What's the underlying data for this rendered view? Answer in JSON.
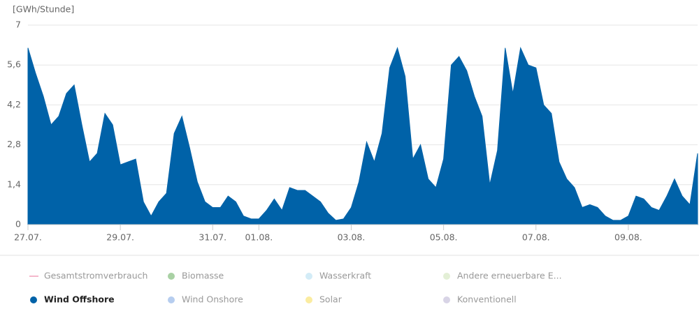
{
  "chart_data": {
    "type": "area",
    "y_label": "[GWh/Stunde]",
    "categories": [
      "27.07.",
      null,
      null,
      null,
      null,
      null,
      null,
      null,
      null,
      null,
      null,
      null,
      "29.07.",
      null,
      null,
      null,
      null,
      null,
      null,
      null,
      null,
      null,
      null,
      null,
      "31.07.",
      null,
      null,
      null,
      null,
      null,
      "01.08.",
      null,
      null,
      null,
      null,
      null,
      null,
      null,
      null,
      null,
      null,
      null,
      "03.08.",
      null,
      null,
      null,
      null,
      null,
      null,
      null,
      null,
      null,
      null,
      null,
      "05.08.",
      null,
      null,
      null,
      null,
      null,
      null,
      null,
      null,
      null,
      null,
      null,
      "07.08.",
      null,
      null,
      null,
      null,
      null,
      null,
      null,
      null,
      null,
      null,
      null,
      "09.08.",
      null,
      null,
      null,
      null,
      null,
      null,
      null,
      null,
      null
    ],
    "series": [
      {
        "name": "Wind Offshore",
        "color": "#0062a8",
        "values": [
          6.2,
          5.3,
          4.5,
          3.5,
          3.8,
          4.6,
          4.9,
          3.5,
          2.2,
          2.5,
          3.9,
          3.5,
          2.1,
          2.2,
          2.3,
          0.8,
          0.3,
          0.8,
          1.1,
          3.2,
          3.8,
          2.7,
          1.5,
          0.8,
          0.6,
          0.6,
          1.0,
          0.8,
          0.3,
          0.2,
          0.2,
          0.5,
          0.9,
          0.5,
          1.3,
          1.2,
          1.2,
          1.0,
          0.8,
          0.4,
          0.15,
          0.2,
          0.6,
          1.5,
          2.9,
          2.2,
          3.2,
          5.5,
          6.2,
          5.2,
          2.3,
          2.8,
          1.6,
          1.3,
          2.3,
          5.6,
          5.9,
          5.4,
          4.5,
          3.8,
          1.4,
          2.6,
          6.2,
          4.6,
          6.2,
          5.6,
          5.5,
          4.2,
          3.9,
          2.2,
          1.6,
          1.3,
          0.6,
          0.7,
          0.6,
          0.3,
          0.15,
          0.15,
          0.3,
          1.0,
          0.9,
          0.6,
          0.5,
          1.0,
          1.6,
          1.0,
          0.7,
          2.5
        ]
      }
    ],
    "ylim": [
      0,
      7
    ],
    "yticks": [
      0,
      {
        "value": 1.4,
        "label": "1,4"
      },
      {
        "value": 2.8,
        "label": "2,8"
      },
      {
        "value": 4.2,
        "label": "4,2"
      },
      {
        "value": 5.6,
        "label": "5,6"
      },
      7
    ],
    "grid": true,
    "legend": [
      {
        "name": "Gesamtstromverbrauch",
        "color": "#f4b8cc",
        "marker": "line"
      },
      {
        "name": "Biomasse",
        "color": "#a9d1a4",
        "marker": "dot"
      },
      {
        "name": "Wasserkraft",
        "color": "#d3ecf7",
        "marker": "dot"
      },
      {
        "name": "Andere erneuerbare E...",
        "color": "#e3efd6",
        "marker": "dot"
      },
      {
        "name": "Wind Offshore",
        "color": "#0062a8",
        "marker": "dot",
        "active": true
      },
      {
        "name": "Wind Onshore",
        "color": "#b6cdef",
        "marker": "dot"
      },
      {
        "name": "Solar",
        "color": "#fbeca0",
        "marker": "dot"
      },
      {
        "name": "Konventionell",
        "color": "#d8d4e6",
        "marker": "dot"
      }
    ]
  }
}
